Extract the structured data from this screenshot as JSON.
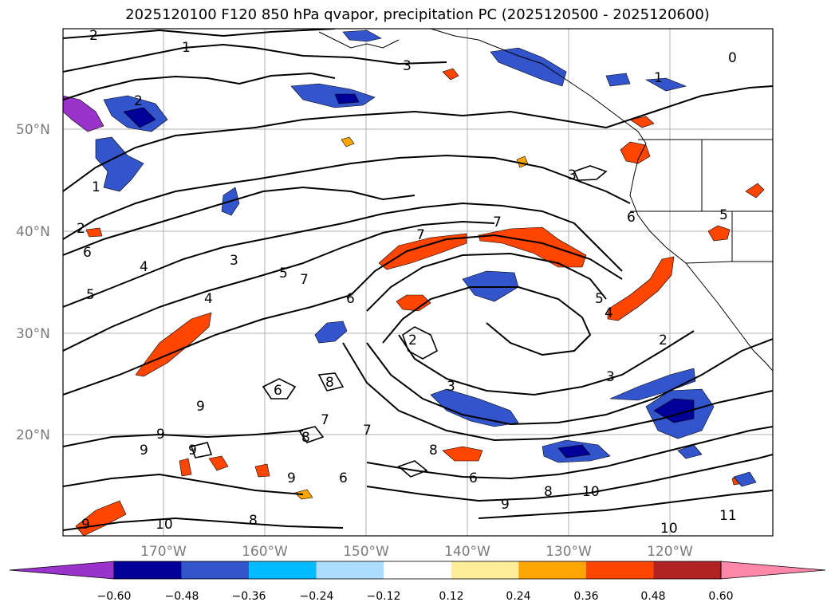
{
  "title": "2025120100 F120 850 hPa qvapor, precipitation PC (2025120500 - 2025120600)",
  "map": {
    "lat_labels": [
      "50°N",
      "40°N",
      "30°N",
      "20°N"
    ],
    "lon_labels": [
      "170°W",
      "160°W",
      "150°W",
      "140°W",
      "130°W",
      "120°W"
    ],
    "contour_labels": [
      "2",
      "1",
      "3",
      "0",
      "1",
      "2",
      "6",
      "1",
      "2",
      "4",
      "3",
      "5",
      "7",
      "6",
      "4",
      "5",
      "7",
      "7",
      "5",
      "4",
      "2",
      "3",
      "3",
      "6",
      "9",
      "9",
      "9",
      "9",
      "8",
      "7",
      "7",
      "8",
      "8",
      "9",
      "6",
      "6",
      "8",
      "9",
      "10",
      "10",
      "11",
      "10",
      "9",
      "8",
      "3",
      "5",
      "6",
      "2"
    ]
  },
  "colorbar": {
    "ticks": [
      "−0.60",
      "−0.48",
      "−0.36",
      "−0.24",
      "−0.12",
      "0.12",
      "0.24",
      "0.36",
      "0.48",
      "0.60"
    ],
    "colors": [
      "#9933cc",
      "#000099",
      "#3355cc",
      "#00bbff",
      "#aaddff",
      "#ffffff",
      "#ffee99",
      "#ffa500",
      "#ff4500",
      "#b22222",
      "#ff88aa"
    ]
  }
}
